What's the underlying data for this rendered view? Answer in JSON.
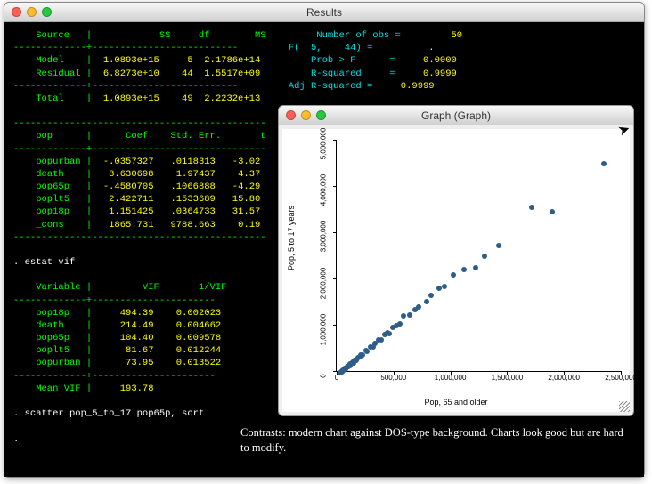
{
  "results_window": {
    "title": "Results"
  },
  "graph_window": {
    "title": "Graph (Graph)"
  },
  "traffic_colors": {
    "close": "#ff5f57",
    "min": "#ffbd2e",
    "max": "#28c940"
  },
  "terminal": {
    "bg": "#000000",
    "fg": "#00ff00",
    "accent_yellow": "#ffff00",
    "accent_cyan": "#00e0e0",
    "accent_white": "#ffffff"
  },
  "anova": {
    "header": [
      "Source",
      "SS",
      "df",
      "MS"
    ],
    "rows": [
      [
        "Model",
        "1.0893e+15",
        "5",
        "2.1786e+14"
      ],
      [
        "Residual",
        "6.8273e+10",
        "44",
        "1.5517e+09"
      ]
    ],
    "total": [
      "Total",
      "1.0893e+15",
      "49",
      "2.2232e+13"
    ],
    "stats": [
      [
        "Number of obs =",
        "50"
      ],
      [
        "F(  5,    44) =",
        "."
      ],
      [
        "Prob > F      =",
        "0.0000"
      ],
      [
        "R-squared     =",
        "0.9999"
      ],
      [
        "Adj R-squared =",
        "0.9999"
      ]
    ]
  },
  "coef_table": {
    "header": [
      "pop",
      "Coef.",
      "Std. Err.",
      "t"
    ],
    "rows": [
      [
        "popurban",
        "-.0357327",
        ".0118313",
        "-3.02"
      ],
      [
        "death",
        "8.630698",
        "1.97437",
        "4.37"
      ],
      [
        "pop65p",
        "-.4580705",
        ".1066888",
        "-4.29"
      ],
      [
        "poplt5",
        "2.422711",
        ".1533689",
        "15.80"
      ],
      [
        "pop18p",
        "1.151425",
        ".0364733",
        "31.57"
      ],
      [
        "_cons",
        "1865.731",
        "9788.663",
        "0.19"
      ]
    ]
  },
  "cmd_estat": ". estat vif",
  "vif_table": {
    "header": [
      "Variable",
      "VIF",
      "1/VIF"
    ],
    "rows": [
      [
        "pop18p",
        "494.39",
        "0.002023"
      ],
      [
        "death",
        "214.49",
        "0.004662"
      ],
      [
        "pop65p",
        "104.40",
        "0.009578"
      ],
      [
        "poplt5",
        "81.67",
        "0.012244"
      ],
      [
        "popurban",
        "73.95",
        "0.013522"
      ]
    ],
    "mean": [
      "Mean VIF",
      "193.78"
    ]
  },
  "cmd_scatter": ". scatter pop_5_to_17 pop65p, sort",
  "dot_line": ".",
  "caption": "Contrasts: modern chart against DOS-type background. Charts look good but are hard to modify.",
  "chart": {
    "type": "scatter",
    "xlabel": "Pop, 65 and older",
    "ylabel": "Pop, 5 to 17 years",
    "xlim": [
      0,
      2500000
    ],
    "ylim": [
      0,
      5000000
    ],
    "xticks": [
      0,
      500000,
      1000000,
      1500000,
      2000000,
      2500000
    ],
    "xtick_labels": [
      "0",
      "500,000",
      "1,000,000",
      "1,500,000",
      "2,000,000",
      "2,500,000"
    ],
    "yticks": [
      0,
      1000000,
      2000000,
      3000000,
      4000000,
      5000000
    ],
    "ytick_labels": [
      "0",
      "1,000,000",
      "2,000,000",
      "3,000,000",
      "4,000,000",
      "5,000,000"
    ],
    "marker_color": "#2e5d8a",
    "marker_size": 6,
    "background_color": "#ffffff",
    "points": [
      [
        30000,
        80000
      ],
      [
        40000,
        95000
      ],
      [
        45000,
        120000
      ],
      [
        50000,
        100000
      ],
      [
        55000,
        140000
      ],
      [
        62000,
        130000
      ],
      [
        70000,
        170000
      ],
      [
        80000,
        160000
      ],
      [
        88000,
        190000
      ],
      [
        95000,
        210000
      ],
      [
        105000,
        220000
      ],
      [
        115000,
        260000
      ],
      [
        120000,
        240000
      ],
      [
        138000,
        300000
      ],
      [
        145000,
        290000
      ],
      [
        160000,
        350000
      ],
      [
        175000,
        340000
      ],
      [
        185000,
        400000
      ],
      [
        200000,
        420000
      ],
      [
        215000,
        470000
      ],
      [
        230000,
        460000
      ],
      [
        255000,
        550000
      ],
      [
        270000,
        540000
      ],
      [
        295000,
        640000
      ],
      [
        320000,
        640000
      ],
      [
        340000,
        720000
      ],
      [
        365000,
        780000
      ],
      [
        395000,
        790000
      ],
      [
        420000,
        900000
      ],
      [
        445000,
        950000
      ],
      [
        460000,
        920000
      ],
      [
        495000,
        1050000
      ],
      [
        525000,
        1100000
      ],
      [
        555000,
        1130000
      ],
      [
        590000,
        1300000
      ],
      [
        640000,
        1320000
      ],
      [
        690000,
        1450000
      ],
      [
        720000,
        1500000
      ],
      [
        790000,
        1620000
      ],
      [
        830000,
        1750000
      ],
      [
        900000,
        1900000
      ],
      [
        950000,
        1950000
      ],
      [
        1030000,
        2200000
      ],
      [
        1120000,
        2300000
      ],
      [
        1220000,
        2350000
      ],
      [
        1300000,
        2600000
      ],
      [
        1430000,
        2830000
      ],
      [
        1720000,
        3650000
      ],
      [
        1900000,
        3550000
      ],
      [
        2350000,
        4600000
      ]
    ]
  }
}
